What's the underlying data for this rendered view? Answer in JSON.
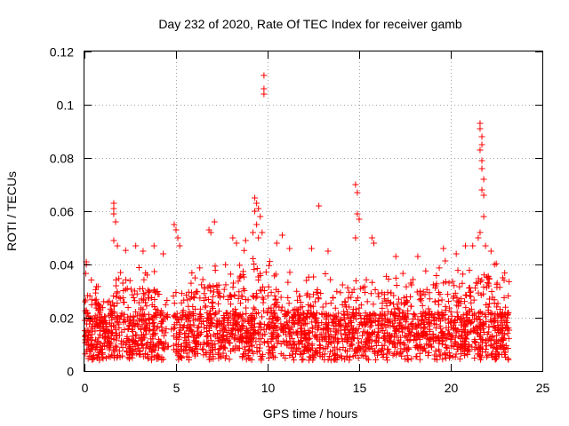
{
  "chart_data": {
    "type": "scatter",
    "title": "Day 232 of 2020, Rate Of TEC Index for receiver gamb",
    "xlabel": "GPS time / hours",
    "ylabel": "ROTI / TECUs",
    "xlim": [
      0,
      25
    ],
    "ylim": [
      0,
      0.12
    ],
    "x_ticks": [
      0,
      5,
      10,
      15,
      20,
      25
    ],
    "x_tick_labels": [
      "0",
      "5",
      "10",
      "15",
      "20",
      "25"
    ],
    "y_ticks": [
      0,
      0.02,
      0.04,
      0.06,
      0.08,
      0.1,
      0.12
    ],
    "y_tick_labels": [
      "0",
      "0.02",
      "0.04",
      "0.06",
      "0.08",
      "0.1",
      "0.12"
    ],
    "grid": true,
    "marker": "+",
    "series_color": "#ff0000",
    "x_data_extent": [
      0,
      23.2
    ],
    "background_level": {
      "description_hours": [
        0,
        1,
        2,
        3,
        4,
        5,
        6,
        7,
        8,
        9,
        10,
        11,
        12,
        13,
        14,
        15,
        16,
        17,
        18,
        19,
        20,
        21,
        22,
        23
      ],
      "typical_upper_roti": [
        0.035,
        0.03,
        0.045,
        0.04,
        0.035,
        0.035,
        0.035,
        0.04,
        0.04,
        0.045,
        0.04,
        0.035,
        0.035,
        0.035,
        0.035,
        0.04,
        0.035,
        0.035,
        0.035,
        0.04,
        0.04,
        0.04,
        0.045,
        0.035
      ]
    },
    "notable_points": [
      {
        "x": 0.1,
        "y": 0.041
      },
      {
        "x": 0.1,
        "y": 0.04
      },
      {
        "x": 1.6,
        "y": 0.063
      },
      {
        "x": 1.6,
        "y": 0.061
      },
      {
        "x": 1.6,
        "y": 0.059
      },
      {
        "x": 1.7,
        "y": 0.056
      },
      {
        "x": 1.6,
        "y": 0.049
      },
      {
        "x": 1.8,
        "y": 0.047
      },
      {
        "x": 2.8,
        "y": 0.047
      },
      {
        "x": 3.2,
        "y": 0.045
      },
      {
        "x": 3.8,
        "y": 0.047
      },
      {
        "x": 4.3,
        "y": 0.044
      },
      {
        "x": 4.9,
        "y": 0.055
      },
      {
        "x": 5.0,
        "y": 0.053
      },
      {
        "x": 5.1,
        "y": 0.05
      },
      {
        "x": 5.2,
        "y": 0.047
      },
      {
        "x": 6.8,
        "y": 0.053
      },
      {
        "x": 7.1,
        "y": 0.056
      },
      {
        "x": 6.9,
        "y": 0.052
      },
      {
        "x": 8.1,
        "y": 0.05
      },
      {
        "x": 8.3,
        "y": 0.048
      },
      {
        "x": 8.8,
        "y": 0.049
      },
      {
        "x": 9.3,
        "y": 0.065
      },
      {
        "x": 9.4,
        "y": 0.063
      },
      {
        "x": 9.5,
        "y": 0.061
      },
      {
        "x": 9.6,
        "y": 0.058
      },
      {
        "x": 9.4,
        "y": 0.055
      },
      {
        "x": 9.2,
        "y": 0.052
      },
      {
        "x": 9.7,
        "y": 0.052
      },
      {
        "x": 9.5,
        "y": 0.05
      },
      {
        "x": 9.3,
        "y": 0.06
      },
      {
        "x": 9.8,
        "y": 0.111
      },
      {
        "x": 9.8,
        "y": 0.106
      },
      {
        "x": 9.8,
        "y": 0.104
      },
      {
        "x": 10.5,
        "y": 0.048
      },
      {
        "x": 10.8,
        "y": 0.051
      },
      {
        "x": 11.2,
        "y": 0.046
      },
      {
        "x": 12.8,
        "y": 0.062
      },
      {
        "x": 12.4,
        "y": 0.046
      },
      {
        "x": 13.3,
        "y": 0.045
      },
      {
        "x": 14.8,
        "y": 0.07
      },
      {
        "x": 14.9,
        "y": 0.067
      },
      {
        "x": 14.9,
        "y": 0.059
      },
      {
        "x": 15.0,
        "y": 0.057
      },
      {
        "x": 14.8,
        "y": 0.05
      },
      {
        "x": 15.7,
        "y": 0.05
      },
      {
        "x": 15.8,
        "y": 0.048
      },
      {
        "x": 17.0,
        "y": 0.043
      },
      {
        "x": 18.2,
        "y": 0.043
      },
      {
        "x": 19.6,
        "y": 0.046
      },
      {
        "x": 20.3,
        "y": 0.044
      },
      {
        "x": 20.8,
        "y": 0.047
      },
      {
        "x": 21.2,
        "y": 0.047
      },
      {
        "x": 21.6,
        "y": 0.093
      },
      {
        "x": 21.6,
        "y": 0.091
      },
      {
        "x": 21.7,
        "y": 0.088
      },
      {
        "x": 21.7,
        "y": 0.085
      },
      {
        "x": 21.6,
        "y": 0.083
      },
      {
        "x": 21.7,
        "y": 0.079
      },
      {
        "x": 21.7,
        "y": 0.076
      },
      {
        "x": 21.8,
        "y": 0.072
      },
      {
        "x": 21.7,
        "y": 0.068
      },
      {
        "x": 21.8,
        "y": 0.066
      },
      {
        "x": 21.8,
        "y": 0.058
      },
      {
        "x": 21.6,
        "y": 0.052
      },
      {
        "x": 21.9,
        "y": 0.047
      },
      {
        "x": 22.2,
        "y": 0.045
      },
      {
        "x": 21.5,
        "y": 0.05
      }
    ]
  }
}
